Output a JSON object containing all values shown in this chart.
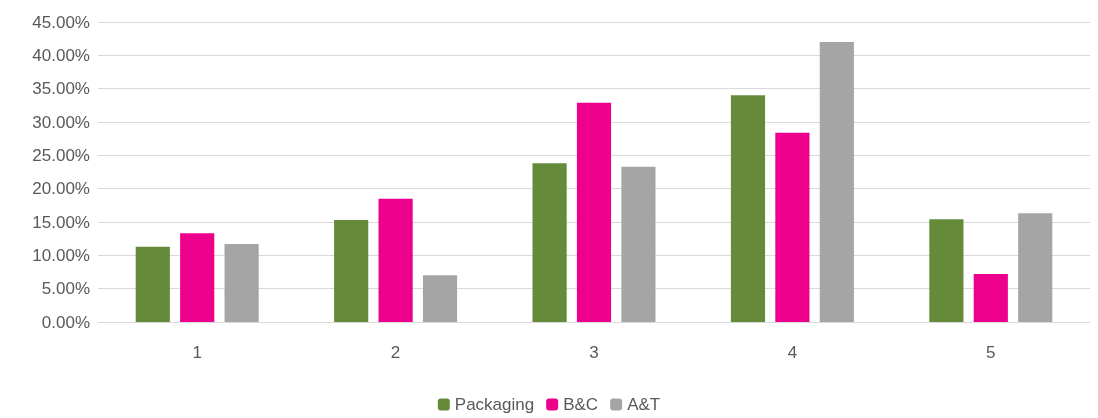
{
  "chart_data": {
    "type": "bar",
    "categories": [
      "1",
      "2",
      "3",
      "4",
      "5"
    ],
    "series": [
      {
        "name": "Packaging",
        "color": "#648a3a",
        "values": [
          11.3,
          15.3,
          23.8,
          34.0,
          15.4
        ]
      },
      {
        "name": "B&C",
        "color": "#ec008c",
        "values": [
          13.3,
          18.5,
          32.9,
          28.4,
          7.2
        ]
      },
      {
        "name": "A&T",
        "color": "#a5a5a5",
        "values": [
          11.7,
          7.0,
          23.3,
          42.0,
          16.3
        ]
      }
    ],
    "ylim": [
      0,
      45
    ],
    "yticks": [
      {
        "value": 0,
        "label": "0.00%"
      },
      {
        "value": 5,
        "label": "5.00%"
      },
      {
        "value": 10,
        "label": "10.00%"
      },
      {
        "value": 15,
        "label": "15.00%"
      },
      {
        "value": 20,
        "label": "20.00%"
      },
      {
        "value": 25,
        "label": "25.00%"
      },
      {
        "value": 30,
        "label": "30.00%"
      },
      {
        "value": 35,
        "label": "35.00%"
      },
      {
        "value": 40,
        "label": "40.00%"
      },
      {
        "value": 45,
        "label": "45.00%"
      }
    ],
    "grid": "y",
    "legend": "bottom"
  }
}
